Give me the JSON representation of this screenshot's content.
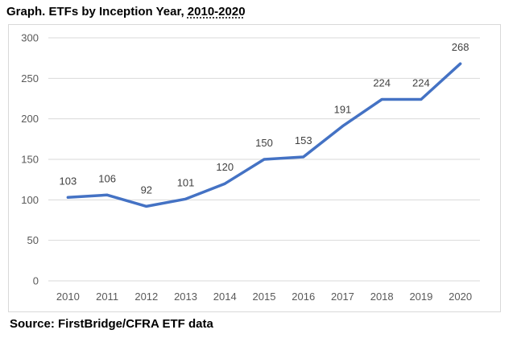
{
  "title": {
    "prefix": "Graph. ETFs by Inception Year, ",
    "years": "2010-2020"
  },
  "source": "Source: FirstBridge/CFRA ETF data",
  "chart_data": {
    "type": "line",
    "title": "Graph. ETFs by Inception Year, 2010-2020",
    "xlabel": "",
    "ylabel": "",
    "x": [
      "2010",
      "2011",
      "2012",
      "2013",
      "2014",
      "2015",
      "2016",
      "2017",
      "2018",
      "2019",
      "2020"
    ],
    "series": [
      {
        "values": [
          103,
          106,
          92,
          101,
          120,
          150,
          153,
          191,
          224,
          224,
          268
        ]
      }
    ],
    "data_labels": [
      "103",
      "106",
      "92",
      "101",
      "120",
      "150",
      "153",
      "191",
      "224",
      "224",
      "268"
    ],
    "ylim": [
      0,
      300
    ],
    "yticks": [
      0,
      50,
      100,
      150,
      200,
      250,
      300
    ],
    "ytick_labels": [
      "0",
      "50",
      "100",
      "150",
      "200",
      "250",
      "300"
    ],
    "grid": true,
    "legend": "none",
    "line_color": "#4472C4",
    "grid_color": "#D9D9D9",
    "border_color": "#D9D9D9"
  }
}
